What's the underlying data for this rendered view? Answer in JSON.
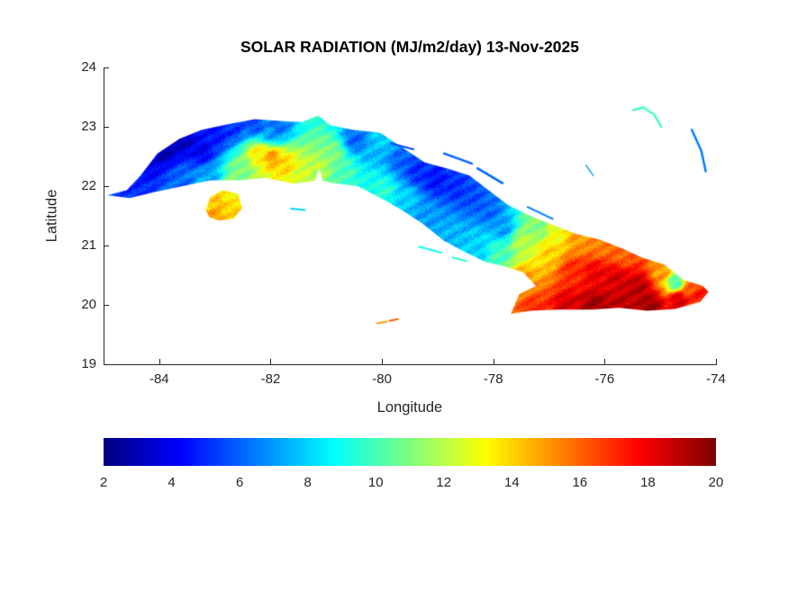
{
  "figure": {
    "background": "#ffffff",
    "text_color": "#262626"
  },
  "chart_data": {
    "type": "heatmap",
    "title": "SOLAR RADIATION (MJ/m2/day) 13-Nov-2025",
    "xlabel": "Longitude",
    "ylabel": "Latitude",
    "xlim": [
      -85,
      -74
    ],
    "ylim": [
      19,
      24
    ],
    "xticks": [
      -84,
      -82,
      -80,
      -78,
      -76,
      -74
    ],
    "yticks": [
      19,
      20,
      21,
      22,
      23,
      24
    ],
    "grid": false,
    "colormap": "jet",
    "colorbar": {
      "orientation": "horizontal",
      "range": [
        2,
        20
      ],
      "ticks": [
        2,
        4,
        6,
        8,
        10,
        12,
        14,
        16,
        18,
        20
      ]
    },
    "regions": [
      {
        "name": "cuba-mainland",
        "polygon": [
          [
            -84.95,
            21.85
          ],
          [
            -84.6,
            21.93
          ],
          [
            -84.35,
            22.18
          ],
          [
            -84.05,
            22.55
          ],
          [
            -83.65,
            22.8
          ],
          [
            -83.25,
            22.95
          ],
          [
            -82.75,
            23.05
          ],
          [
            -82.3,
            23.13
          ],
          [
            -81.85,
            23.1
          ],
          [
            -81.45,
            23.08
          ],
          [
            -81.16,
            23.19
          ],
          [
            -80.95,
            23.03
          ],
          [
            -80.55,
            22.95
          ],
          [
            -80.05,
            22.9
          ],
          [
            -79.7,
            22.68
          ],
          [
            -79.25,
            22.4
          ],
          [
            -78.85,
            22.3
          ],
          [
            -78.45,
            22.18
          ],
          [
            -78.1,
            21.93
          ],
          [
            -77.75,
            21.68
          ],
          [
            -77.35,
            21.5
          ],
          [
            -76.95,
            21.35
          ],
          [
            -76.55,
            21.2
          ],
          [
            -76.1,
            21.1
          ],
          [
            -75.7,
            20.95
          ],
          [
            -75.35,
            20.8
          ],
          [
            -74.95,
            20.68
          ],
          [
            -74.6,
            20.42
          ],
          [
            -74.25,
            20.32
          ],
          [
            -74.15,
            20.22
          ],
          [
            -74.3,
            20.05
          ],
          [
            -74.75,
            19.93
          ],
          [
            -75.25,
            19.9
          ],
          [
            -75.75,
            19.95
          ],
          [
            -76.25,
            19.92
          ],
          [
            -76.85,
            19.92
          ],
          [
            -77.35,
            19.9
          ],
          [
            -77.7,
            19.85
          ],
          [
            -77.55,
            20.18
          ],
          [
            -77.25,
            20.32
          ],
          [
            -77.48,
            20.55
          ],
          [
            -77.85,
            20.66
          ],
          [
            -78.15,
            20.72
          ],
          [
            -78.55,
            20.9
          ],
          [
            -78.9,
            21.08
          ],
          [
            -79.3,
            21.38
          ],
          [
            -79.7,
            21.62
          ],
          [
            -80.0,
            21.78
          ],
          [
            -80.45,
            22.0
          ],
          [
            -80.95,
            22.06
          ],
          [
            -81.08,
            22.09
          ],
          [
            -81.14,
            22.3
          ],
          [
            -81.22,
            22.09
          ],
          [
            -81.6,
            22.04
          ],
          [
            -82.1,
            22.14
          ],
          [
            -82.6,
            22.1
          ],
          [
            -83.1,
            22.1
          ],
          [
            -83.6,
            22.0
          ],
          [
            -84.1,
            21.9
          ],
          [
            -84.55,
            21.8
          ]
        ]
      },
      {
        "name": "isla-de-la-juventud",
        "polygon": [
          [
            -83.18,
            21.6
          ],
          [
            -83.1,
            21.82
          ],
          [
            -82.88,
            21.93
          ],
          [
            -82.6,
            21.87
          ],
          [
            -82.53,
            21.63
          ],
          [
            -82.68,
            21.45
          ],
          [
            -82.95,
            21.42
          ],
          [
            -83.12,
            21.48
          ]
        ]
      }
    ],
    "field_points": [
      [
        -84.9,
        21.9,
        5.5
      ],
      [
        -84.55,
        22.0,
        5
      ],
      [
        -84.3,
        22.35,
        4
      ],
      [
        -84.0,
        22.65,
        2.5
      ],
      [
        -83.6,
        22.8,
        3
      ],
      [
        -83.25,
        22.6,
        4
      ],
      [
        -83.0,
        22.88,
        4.5
      ],
      [
        -83.6,
        22.05,
        6
      ],
      [
        -83.1,
        22.12,
        7
      ],
      [
        -82.7,
        23.0,
        5
      ],
      [
        -82.3,
        23.05,
        5.5
      ],
      [
        -81.9,
        23.0,
        6
      ],
      [
        -82.55,
        22.3,
        11
      ],
      [
        -82.25,
        22.55,
        13.5
      ],
      [
        -82.0,
        22.5,
        15
      ],
      [
        -81.75,
        22.35,
        14
      ],
      [
        -81.5,
        22.2,
        12.5
      ],
      [
        -81.15,
        22.35,
        12
      ],
      [
        -80.9,
        22.55,
        11
      ],
      [
        -80.7,
        22.25,
        10
      ],
      [
        -82.0,
        22.9,
        7
      ],
      [
        -80.5,
        22.78,
        6
      ],
      [
        -80.2,
        22.55,
        7.5
      ],
      [
        -80.0,
        22.82,
        8
      ],
      [
        -79.7,
        22.45,
        6
      ],
      [
        -79.4,
        22.25,
        5
      ],
      [
        -79.05,
        22.1,
        4.5
      ],
      [
        -78.7,
        22.0,
        5
      ],
      [
        -78.4,
        21.8,
        5.5
      ],
      [
        -78.1,
        21.6,
        6
      ],
      [
        -77.85,
        21.3,
        7
      ],
      [
        -80.3,
        22.1,
        9
      ],
      [
        -80.0,
        21.95,
        9.5
      ],
      [
        -79.6,
        21.8,
        8
      ],
      [
        -79.2,
        21.5,
        7
      ],
      [
        -78.8,
        21.15,
        7.5
      ],
      [
        -78.3,
        20.95,
        8
      ],
      [
        -77.9,
        20.85,
        10
      ],
      [
        -77.5,
        21.05,
        12
      ],
      [
        -77.2,
        21.3,
        11
      ],
      [
        -77.0,
        20.9,
        14
      ],
      [
        -77.5,
        20.45,
        15
      ],
      [
        -77.3,
        19.95,
        17
      ],
      [
        -76.9,
        21.2,
        13
      ],
      [
        -76.5,
        21.1,
        15
      ],
      [
        -76.1,
        21.0,
        15.5
      ],
      [
        -75.7,
        20.85,
        16
      ],
      [
        -76.6,
        20.6,
        17
      ],
      [
        -76.2,
        20.55,
        18
      ],
      [
        -75.8,
        20.45,
        18.5
      ],
      [
        -75.4,
        20.3,
        19
      ],
      [
        -76.7,
        20.0,
        18.5
      ],
      [
        -76.2,
        20.0,
        19.5
      ],
      [
        -75.7,
        20.0,
        19
      ],
      [
        -75.2,
        20.0,
        19.5
      ],
      [
        -74.7,
        20.1,
        18.5
      ],
      [
        -74.35,
        20.2,
        17.5
      ],
      [
        -74.75,
        20.38,
        10
      ],
      [
        -75.0,
        20.55,
        15
      ],
      [
        -74.45,
        20.3,
        16
      ],
      [
        -82.95,
        21.75,
        14.5
      ],
      [
        -82.7,
        21.6,
        14
      ],
      [
        -83.05,
        21.5,
        15
      ],
      [
        -82.85,
        21.85,
        13.5
      ]
    ],
    "islets": [
      {
        "name": "cayo-fragoso",
        "path": [
          [
            -79.85,
            22.72
          ],
          [
            -79.45,
            22.62
          ]
        ],
        "value": 5.5,
        "width": 2
      },
      {
        "name": "cayo-coco",
        "path": [
          [
            -78.9,
            22.55
          ],
          [
            -78.4,
            22.38
          ]
        ],
        "value": 6,
        "width": 2.5
      },
      {
        "name": "cayo-romano",
        "path": [
          [
            -78.3,
            22.3
          ],
          [
            -77.85,
            22.05
          ]
        ],
        "value": 6,
        "width": 2.5
      },
      {
        "name": "cayo-sabinal",
        "path": [
          [
            -77.4,
            21.65
          ],
          [
            -76.95,
            21.45
          ]
        ],
        "value": 6.5,
        "width": 2
      },
      {
        "name": "jardines-de-la-reina-west",
        "path": [
          [
            -79.35,
            20.98
          ],
          [
            -78.95,
            20.88
          ]
        ],
        "value": 9,
        "width": 2
      },
      {
        "name": "jardines-de-la-reina-east",
        "path": [
          [
            -78.75,
            20.8
          ],
          [
            -78.5,
            20.74
          ]
        ],
        "value": 9.5,
        "width": 2
      },
      {
        "name": "cayo-largo",
        "path": [
          [
            -81.65,
            21.62
          ],
          [
            -81.4,
            21.6
          ]
        ],
        "value": 8,
        "width": 2
      },
      {
        "name": "cayman-brac",
        "path": [
          [
            -80.1,
            19.69
          ],
          [
            -79.93,
            19.72
          ]
        ],
        "value": 15,
        "width": 2
      },
      {
        "name": "little-cayman",
        "path": [
          [
            -79.88,
            19.73
          ],
          [
            -79.73,
            19.76
          ]
        ],
        "value": 16,
        "width": 2
      },
      {
        "name": "long-island-bahamas",
        "path": [
          [
            -75.5,
            23.28
          ],
          [
            -75.32,
            23.33
          ],
          [
            -75.12,
            23.2
          ],
          [
            -75.0,
            23.0
          ]
        ],
        "value": 10,
        "width": 2.5
      },
      {
        "name": "crooked-acklins",
        "path": [
          [
            -74.45,
            22.95
          ],
          [
            -74.28,
            22.6
          ],
          [
            -74.2,
            22.25
          ]
        ],
        "value": 6.5,
        "width": 2.5
      },
      {
        "name": "ragged-island-chain",
        "path": [
          [
            -76.35,
            22.35
          ],
          [
            -76.22,
            22.18
          ]
        ],
        "value": 7,
        "width": 1.5
      }
    ]
  }
}
